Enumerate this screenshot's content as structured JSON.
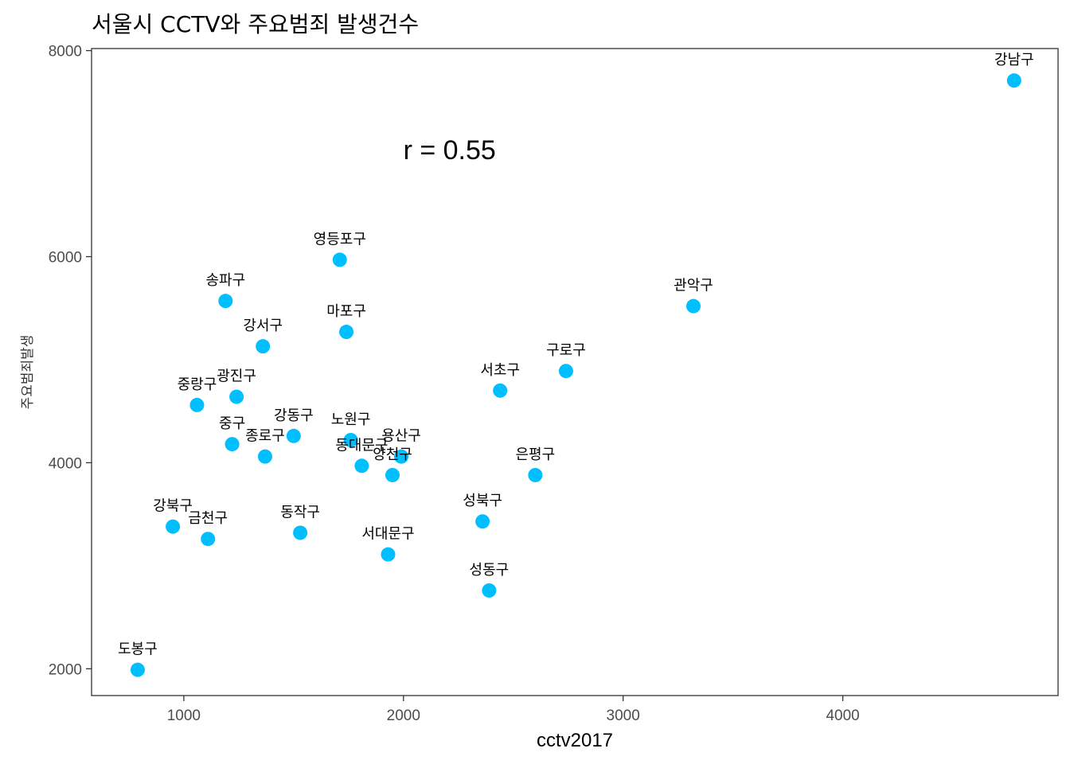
{
  "chart_data": {
    "type": "scatter",
    "title": "서울시 CCTV와 주요범죄 발생건수",
    "xlabel": "cctv2017",
    "ylabel": "주요범죄발생",
    "xlim": [
      580,
      4980
    ],
    "ylim": [
      1740,
      8020
    ],
    "xticks": [
      1000,
      2000,
      3000,
      4000
    ],
    "yticks": [
      2000,
      4000,
      6000,
      8000
    ],
    "xtick_labels": [
      "1000",
      "2000",
      "3000",
      "4000"
    ],
    "ytick_labels": [
      "2000",
      "4000",
      "6000",
      "8000"
    ],
    "annotation": {
      "text": "r = 0.55",
      "x": 3000,
      "y": 7000
    },
    "point_color": "#00BFFF",
    "points": [
      {
        "label": "강남구",
        "x": 4780,
        "y": 7710
      },
      {
        "label": "영등포구",
        "x": 1710,
        "y": 5970
      },
      {
        "label": "관악구",
        "x": 3320,
        "y": 5520
      },
      {
        "label": "송파구",
        "x": 1190,
        "y": 5570
      },
      {
        "label": "강서구",
        "x": 1360,
        "y": 5130
      },
      {
        "label": "마포구",
        "x": 1740,
        "y": 5270
      },
      {
        "label": "구로구",
        "x": 2740,
        "y": 4890
      },
      {
        "label": "서초구",
        "x": 2440,
        "y": 4700
      },
      {
        "label": "중랑구",
        "x": 1060,
        "y": 4560
      },
      {
        "label": "광진구",
        "x": 1240,
        "y": 4640
      },
      {
        "label": "강동구",
        "x": 1500,
        "y": 4260
      },
      {
        "label": "노원구",
        "x": 1760,
        "y": 4220
      },
      {
        "label": "중구",
        "x": 1220,
        "y": 4180
      },
      {
        "label": "종로구",
        "x": 1370,
        "y": 4060
      },
      {
        "label": "용산구",
        "x": 1990,
        "y": 4060
      },
      {
        "label": "동대문구",
        "x": 1810,
        "y": 3970
      },
      {
        "label": "양천구",
        "x": 1950,
        "y": 3880
      },
      {
        "label": "은평구",
        "x": 2600,
        "y": 3880
      },
      {
        "label": "성북구",
        "x": 2360,
        "y": 3430
      },
      {
        "label": "강북구",
        "x": 950,
        "y": 3380
      },
      {
        "label": "금천구",
        "x": 1110,
        "y": 3260
      },
      {
        "label": "동작구",
        "x": 1530,
        "y": 3320
      },
      {
        "label": "서대문구",
        "x": 1930,
        "y": 3110
      },
      {
        "label": "성동구",
        "x": 2390,
        "y": 2760
      },
      {
        "label": "도봉구",
        "x": 790,
        "y": 1990
      }
    ]
  }
}
